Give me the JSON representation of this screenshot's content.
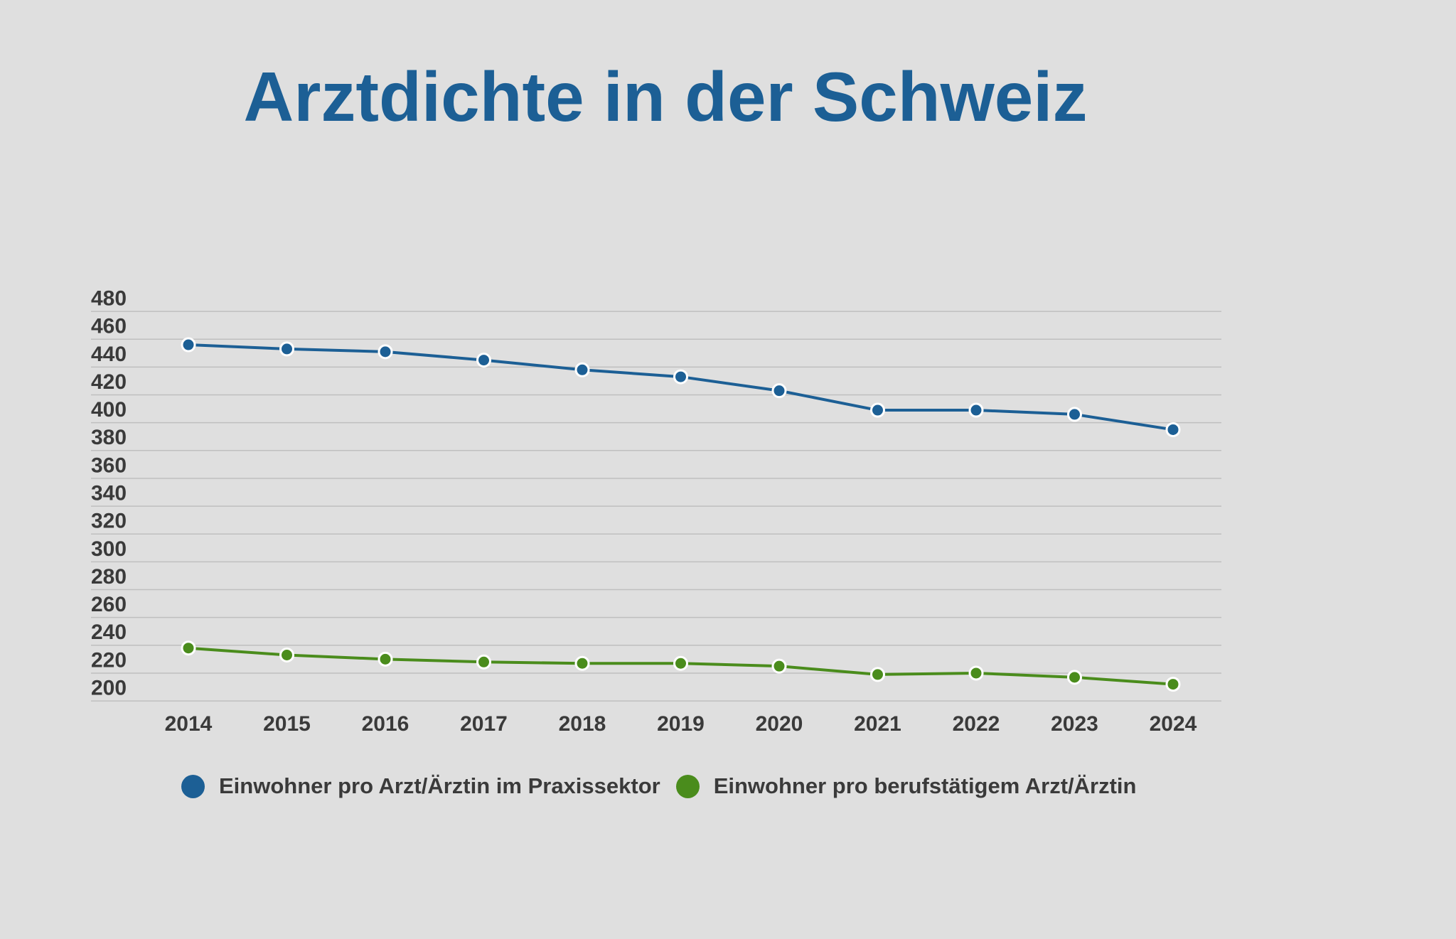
{
  "chart_data": {
    "type": "line",
    "title": "Arztdichte in der Schweiz",
    "xlabel": "",
    "ylabel": "",
    "categories": [
      "2014",
      "2015",
      "2016",
      "2017",
      "2018",
      "2019",
      "2020",
      "2021",
      "2022",
      "2023",
      "2024"
    ],
    "series": [
      {
        "name": "Einwohner pro Arzt/Ärztin im Praxissektor",
        "color": "#1c5f95",
        "values": [
          446,
          443,
          441,
          435,
          428,
          423,
          413,
          399,
          399,
          396,
          385
        ]
      },
      {
        "name": "Einwohner pro berufstätigem Arzt/Ärztin",
        "color": "#4a8c1c",
        "values": [
          228,
          223,
          220,
          218,
          217,
          217,
          215,
          209,
          210,
          207,
          202
        ]
      }
    ],
    "yticks": [
      200,
      220,
      240,
      260,
      280,
      300,
      320,
      340,
      360,
      380,
      400,
      420,
      440,
      460,
      480
    ],
    "ylim": [
      188,
      468
    ],
    "grid": true,
    "legend_position": "bottom"
  }
}
